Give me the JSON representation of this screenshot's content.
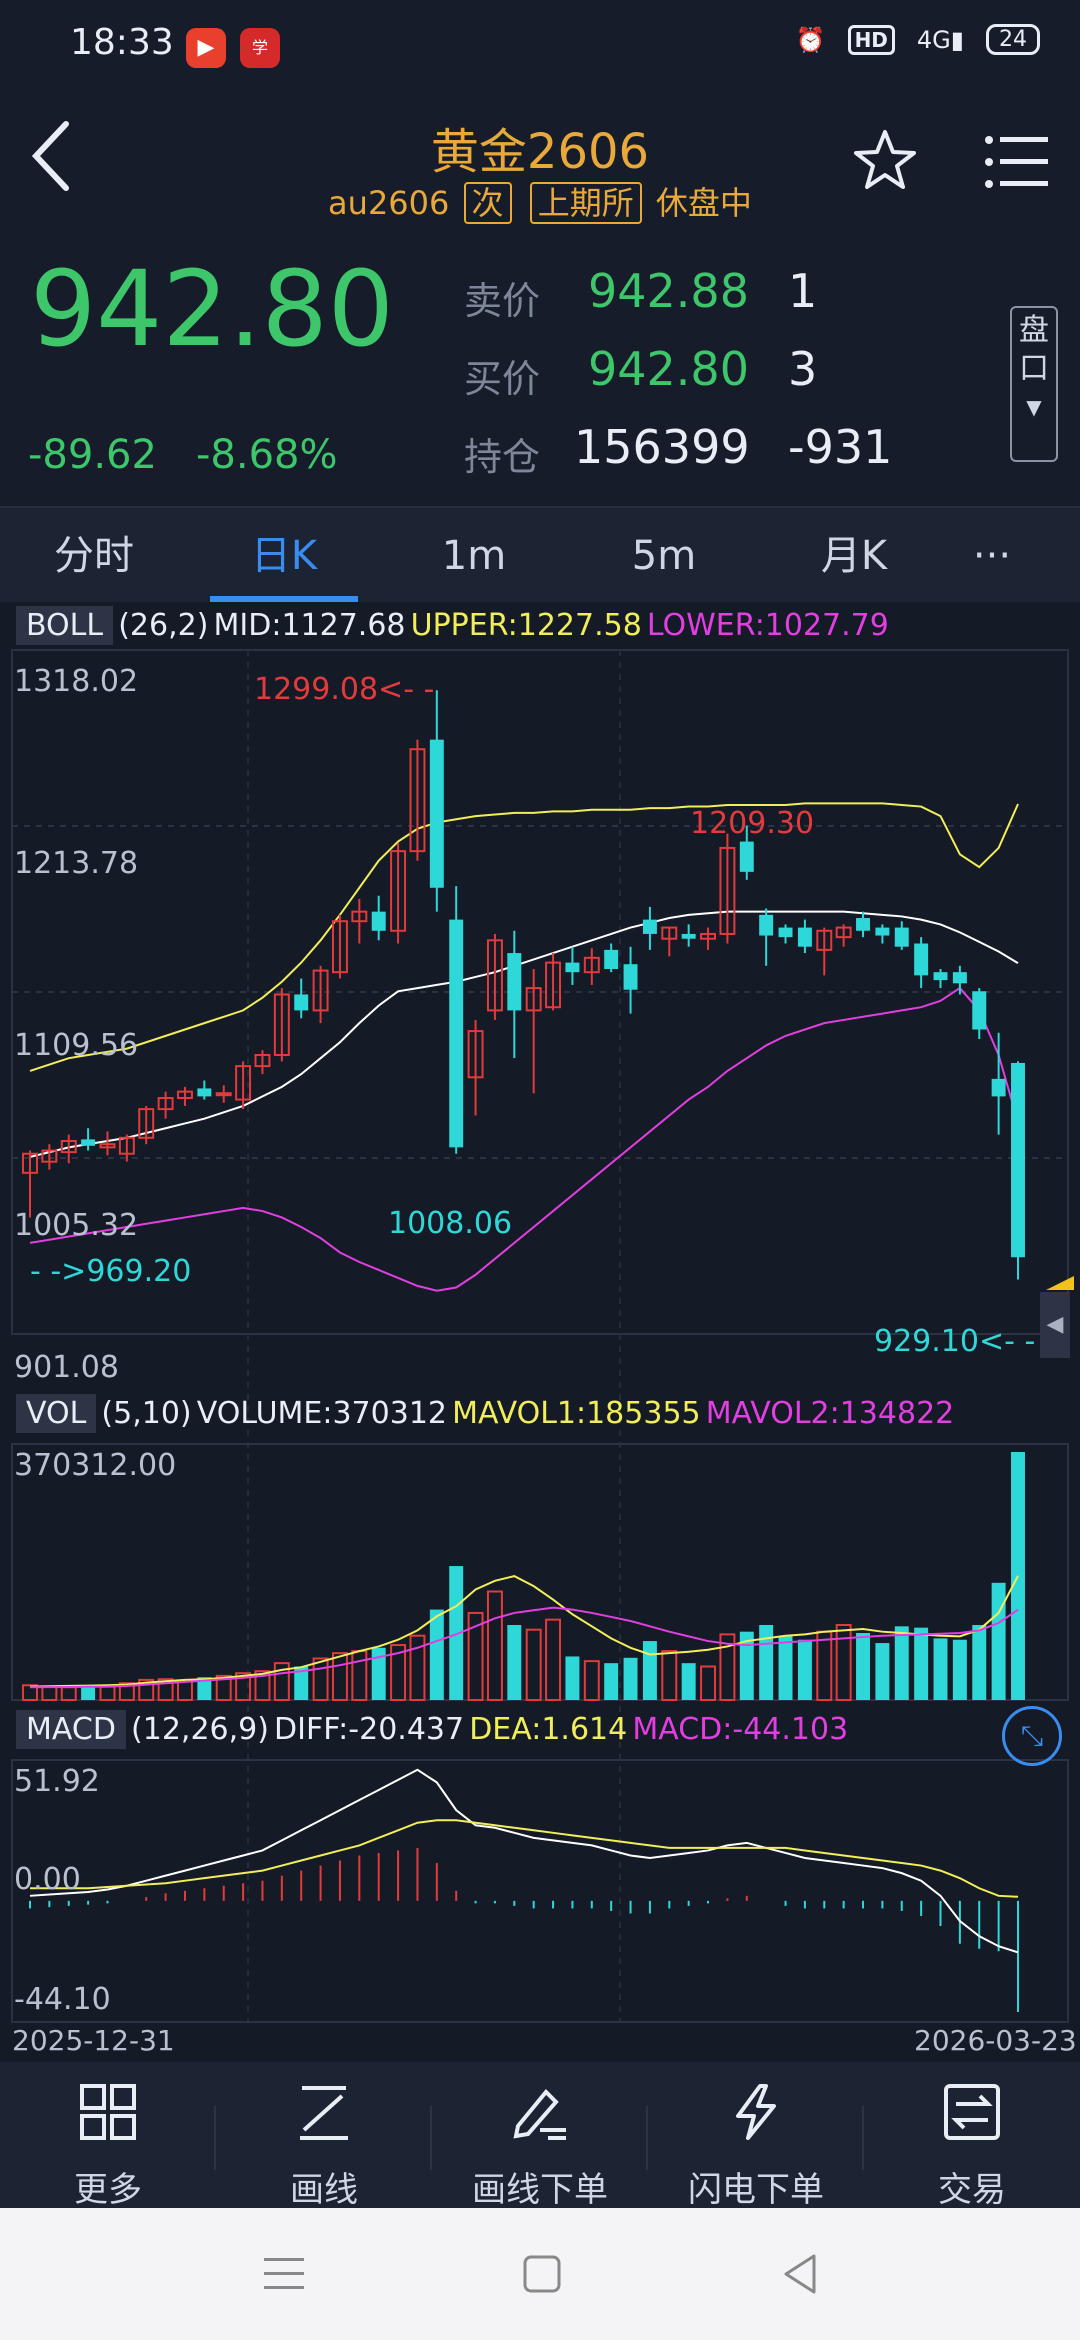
{
  "status_bar": {
    "time": "18:33",
    "network": "4G",
    "hd": "HD",
    "battery": "24"
  },
  "header": {
    "title": "黄金2606",
    "code": "au2606",
    "tag1": "次",
    "tag2": "上期所",
    "state": "休盘中"
  },
  "quote": {
    "price": "942.80",
    "change": "-89.62",
    "change_pct": "-8.68%",
    "ask_label": "卖价",
    "ask_price": "942.88",
    "ask_vol": "1",
    "bid_label": "买价",
    "bid_price": "942.80",
    "bid_vol": "3",
    "oi_label": "持仓",
    "oi_value": "156399",
    "oi_change": "-931",
    "pankou_label_1": "盘",
    "pankou_label_2": "口"
  },
  "tabs": [
    {
      "label": "分时"
    },
    {
      "label": "日K"
    },
    {
      "label": "1m"
    },
    {
      "label": "5m"
    },
    {
      "label": "月K"
    },
    {
      "label": "···"
    }
  ],
  "boll": {
    "name": "BOLL",
    "params": "(26,2)",
    "mid": "MID:1127.68",
    "upper": "UPPER:1227.58",
    "lower": "LOWER:1027.79",
    "y_ticks": [
      "1318.02",
      "1213.78",
      "1109.56",
      "1005.32",
      "901.08"
    ],
    "max_label": "1299.08<- -",
    "min_label": "1008.06",
    "local_high_label": "1209.30",
    "start_label": "- ->969.20",
    "last_low_label": "929.10<- -"
  },
  "vol": {
    "name": "VOL",
    "params": "(5,10)",
    "volume": "VOLUME:370312",
    "mavol1": "MAVOL1:185355",
    "mavol2": "MAVOL2:134822",
    "y_top": "370312.00"
  },
  "macd": {
    "name": "MACD",
    "params": "(12,26,9)",
    "diff": "DIFF:-20.437",
    "dea": "DEA:1.614",
    "macd": "MACD:-44.103",
    "y_ticks": [
      "51.92",
      "0.00",
      "-44.10"
    ]
  },
  "dates": {
    "start": "2025-12-31",
    "end": "2026-03-23"
  },
  "colors": {
    "up": "#e33b3b",
    "down": "#2fd8d8",
    "upper": "#f2ee5a",
    "mid": "#ffffff",
    "lower": "#e23fe0",
    "accent": "#3a8df0",
    "price": "#3ec66a",
    "gold": "#e8a93a"
  },
  "toolbar": [
    {
      "label": "更多",
      "icon": "grid-icon"
    },
    {
      "label": "画线",
      "icon": "draw-line-icon"
    },
    {
      "label": "画线下单",
      "icon": "draw-order-icon"
    },
    {
      "label": "闪电下单",
      "icon": "lightning-icon"
    },
    {
      "label": "交易",
      "icon": "trade-icon"
    }
  ],
  "chart_data": [
    {
      "type": "candlestick",
      "title": "BOLL",
      "x_start": "2025-12-31",
      "x_end": "2026-03-23",
      "ylim": [
        901.08,
        1318.02
      ],
      "candles": [
        {
          "o": 996,
          "h": 1010,
          "l": 968,
          "c": 1008
        },
        {
          "o": 1003,
          "h": 1014,
          "l": 998,
          "c": 1010
        },
        {
          "o": 1009,
          "h": 1020,
          "l": 1002,
          "c": 1016
        },
        {
          "o": 1017,
          "h": 1024,
          "l": 1010,
          "c": 1013
        },
        {
          "o": 1012,
          "h": 1022,
          "l": 1007,
          "c": 1014
        },
        {
          "o": 1008,
          "h": 1020,
          "l": 1003,
          "c": 1018
        },
        {
          "o": 1018,
          "h": 1038,
          "l": 1014,
          "c": 1036
        },
        {
          "o": 1036,
          "h": 1047,
          "l": 1030,
          "c": 1043
        },
        {
          "o": 1043,
          "h": 1050,
          "l": 1038,
          "c": 1047
        },
        {
          "o": 1049,
          "h": 1054,
          "l": 1042,
          "c": 1044
        },
        {
          "o": 1045,
          "h": 1051,
          "l": 1040,
          "c": 1046
        },
        {
          "o": 1042,
          "h": 1066,
          "l": 1036,
          "c": 1063
        },
        {
          "o": 1063,
          "h": 1073,
          "l": 1058,
          "c": 1070
        },
        {
          "o": 1070,
          "h": 1112,
          "l": 1066,
          "c": 1108
        },
        {
          "o": 1108,
          "h": 1118,
          "l": 1093,
          "c": 1098
        },
        {
          "o": 1098,
          "h": 1126,
          "l": 1090,
          "c": 1123
        },
        {
          "o": 1122,
          "h": 1158,
          "l": 1118,
          "c": 1154
        },
        {
          "o": 1154,
          "h": 1168,
          "l": 1140,
          "c": 1160
        },
        {
          "o": 1160,
          "h": 1170,
          "l": 1142,
          "c": 1148
        },
        {
          "o": 1148,
          "h": 1203,
          "l": 1140,
          "c": 1198
        },
        {
          "o": 1198,
          "h": 1268,
          "l": 1192,
          "c": 1262
        },
        {
          "o": 1268,
          "h": 1299,
          "l": 1160,
          "c": 1175
        },
        {
          "o": 1155,
          "h": 1176,
          "l": 1008,
          "c": 1012
        },
        {
          "o": 1056,
          "h": 1092,
          "l": 1032,
          "c": 1085
        },
        {
          "o": 1098,
          "h": 1146,
          "l": 1092,
          "c": 1142
        },
        {
          "o": 1134,
          "h": 1148,
          "l": 1068,
          "c": 1098
        },
        {
          "o": 1098,
          "h": 1124,
          "l": 1046,
          "c": 1112
        },
        {
          "o": 1100,
          "h": 1134,
          "l": 1098,
          "c": 1128
        },
        {
          "o": 1128,
          "h": 1138,
          "l": 1114,
          "c": 1122
        },
        {
          "o": 1122,
          "h": 1137,
          "l": 1114,
          "c": 1131
        },
        {
          "o": 1136,
          "h": 1140,
          "l": 1122,
          "c": 1124
        },
        {
          "o": 1127,
          "h": 1138,
          "l": 1096,
          "c": 1111
        },
        {
          "o": 1155,
          "h": 1163,
          "l": 1136,
          "c": 1146
        },
        {
          "o": 1143,
          "h": 1150,
          "l": 1132,
          "c": 1150
        },
        {
          "o": 1146,
          "h": 1152,
          "l": 1138,
          "c": 1143
        },
        {
          "o": 1143,
          "h": 1150,
          "l": 1136,
          "c": 1146
        },
        {
          "o": 1146,
          "h": 1209,
          "l": 1140,
          "c": 1200
        },
        {
          "o": 1204,
          "h": 1214,
          "l": 1180,
          "c": 1185
        },
        {
          "o": 1158,
          "h": 1162,
          "l": 1126,
          "c": 1145
        },
        {
          "o": 1150,
          "h": 1152,
          "l": 1140,
          "c": 1144
        },
        {
          "o": 1150,
          "h": 1155,
          "l": 1134,
          "c": 1138
        },
        {
          "o": 1136,
          "h": 1150,
          "l": 1120,
          "c": 1148
        },
        {
          "o": 1144,
          "h": 1152,
          "l": 1138,
          "c": 1150
        },
        {
          "o": 1156,
          "h": 1160,
          "l": 1144,
          "c": 1148
        },
        {
          "o": 1150,
          "h": 1152,
          "l": 1140,
          "c": 1145
        },
        {
          "o": 1150,
          "h": 1154,
          "l": 1136,
          "c": 1138
        },
        {
          "o": 1140,
          "h": 1144,
          "l": 1112,
          "c": 1120
        },
        {
          "o": 1122,
          "h": 1124,
          "l": 1112,
          "c": 1117
        },
        {
          "o": 1122,
          "h": 1126,
          "l": 1108,
          "c": 1115
        },
        {
          "o": 1110,
          "h": 1112,
          "l": 1080,
          "c": 1086
        },
        {
          "o": 1055,
          "h": 1084,
          "l": 1020,
          "c": 1044
        },
        {
          "o": 1065,
          "h": 1066,
          "l": 929,
          "c": 943
        }
      ],
      "upper": [
        1060,
        1064,
        1068,
        1070,
        1072,
        1074,
        1078,
        1082,
        1086,
        1090,
        1094,
        1098,
        1106,
        1116,
        1128,
        1142,
        1158,
        1175,
        1192,
        1204,
        1212,
        1216,
        1218,
        1220,
        1221,
        1222,
        1222,
        1223,
        1223,
        1224,
        1224,
        1224,
        1225,
        1225,
        1226,
        1226,
        1227,
        1227,
        1227,
        1227,
        1228,
        1228,
        1228,
        1228,
        1228,
        1227,
        1226,
        1220,
        1196,
        1188,
        1200,
        1227.58
      ],
      "mid": [
        1006,
        1009,
        1012,
        1014,
        1016,
        1018,
        1021,
        1024,
        1027,
        1030,
        1034,
        1038,
        1044,
        1050,
        1058,
        1068,
        1078,
        1090,
        1101,
        1110,
        1112,
        1114,
        1116,
        1119,
        1122,
        1126,
        1130,
        1134,
        1138,
        1142,
        1146,
        1150,
        1153,
        1156,
        1158,
        1159,
        1160,
        1160,
        1160,
        1160,
        1160,
        1160,
        1160,
        1159,
        1158,
        1157,
        1155,
        1152,
        1147,
        1141,
        1135,
        1127.68
      ],
      "lower": [
        952,
        954,
        956,
        958,
        960,
        962,
        964,
        966,
        968,
        970,
        972,
        974,
        972,
        968,
        962,
        955,
        946,
        940,
        935,
        930,
        925,
        922,
        924,
        932,
        942,
        952,
        962,
        972,
        982,
        992,
        1002,
        1012,
        1022,
        1032,
        1042,
        1050,
        1060,
        1068,
        1076,
        1082,
        1086,
        1090,
        1092,
        1094,
        1096,
        1098,
        1100,
        1104,
        1112,
        1098,
        1070,
        1027.79
      ]
    },
    {
      "type": "bar",
      "title": "VOL",
      "ylim": [
        0,
        370312
      ],
      "volume": [
        22000,
        20000,
        19000,
        21000,
        20000,
        25000,
        30000,
        31000,
        28000,
        34000,
        36000,
        40000,
        43000,
        55000,
        50000,
        62000,
        70000,
        73000,
        78000,
        82000,
        96000,
        135000,
        200000,
        130000,
        162000,
        112000,
        105000,
        120000,
        65000,
        58000,
        55000,
        63000,
        88000,
        73000,
        55000,
        50000,
        98000,
        102000,
        112000,
        96000,
        90000,
        102000,
        112000,
        100000,
        85000,
        110000,
        108000,
        92000,
        90000,
        112000,
        175000,
        370312
      ],
      "mavol1": [
        20000,
        20500,
        21000,
        21500,
        22000,
        23000,
        26000,
        28000,
        30000,
        31000,
        33000,
        36000,
        39000,
        45000,
        49000,
        57000,
        65000,
        73000,
        80000,
        90000,
        104000,
        125000,
        140000,
        165000,
        178000,
        185000,
        170000,
        150000,
        128000,
        110000,
        92000,
        78000,
        68000,
        70000,
        72000,
        75000,
        80000,
        88000,
        92000,
        96000,
        98000,
        102000,
        104000,
        106000,
        102000,
        100000,
        98000,
        96000,
        95000,
        105000,
        130000,
        185355
      ],
      "mavol2": [
        19000,
        19200,
        19400,
        19700,
        20000,
        21000,
        23000,
        25000,
        27000,
        29000,
        31000,
        33000,
        36000,
        40000,
        43000,
        47000,
        52000,
        58000,
        64000,
        70000,
        78000,
        88000,
        98000,
        110000,
        122000,
        130000,
        134000,
        138000,
        135000,
        130000,
        124000,
        118000,
        110000,
        102000,
        95000,
        88000,
        84000,
        82000,
        84000,
        86000,
        88000,
        90000,
        92000,
        94000,
        96000,
        97000,
        98000,
        99000,
        100000,
        104000,
        115000,
        134822
      ]
    },
    {
      "type": "line",
      "title": "MACD",
      "ylim": [
        -44.1,
        51.92
      ],
      "diff": [
        2,
        2.5,
        3,
        3.5,
        4.5,
        6,
        8,
        10,
        12,
        14,
        16,
        18,
        20,
        24,
        28,
        32,
        36,
        40,
        44,
        48,
        52,
        47,
        36,
        30,
        29,
        27,
        25,
        24,
        23,
        22,
        20,
        18,
        17,
        18,
        19,
        20,
        22,
        23,
        21,
        19,
        17,
        16,
        15,
        14,
        13,
        11,
        8,
        2,
        -8,
        -14,
        -18,
        -20.437
      ],
      "dea": [
        5,
        5,
        5,
        5,
        5.5,
        6,
        6.5,
        7,
        8,
        9,
        10,
        11,
        12,
        14,
        16,
        18,
        20,
        22,
        25,
        28,
        31,
        32,
        32,
        31,
        30,
        29,
        28,
        27,
        26,
        25,
        24,
        23,
        22,
        21,
        21,
        21,
        21,
        21,
        21,
        21,
        20,
        19,
        18,
        17,
        16,
        15,
        14,
        12,
        9,
        5,
        2,
        1.614
      ],
      "macd": [
        -3,
        -2.5,
        -2,
        -1.5,
        -1,
        0,
        1.5,
        3,
        4,
        5,
        6,
        7,
        8,
        10,
        12,
        14,
        16,
        18,
        19,
        20,
        21,
        15,
        4,
        -1,
        -1,
        -2,
        -3,
        -3,
        -3,
        -3,
        -4,
        -5,
        -5,
        -3,
        -2,
        -1,
        1,
        2,
        0,
        -2,
        -3,
        -3,
        -3,
        -3,
        -3,
        -4,
        -6,
        -10,
        -17,
        -19,
        -20,
        -44.103
      ]
    }
  ]
}
